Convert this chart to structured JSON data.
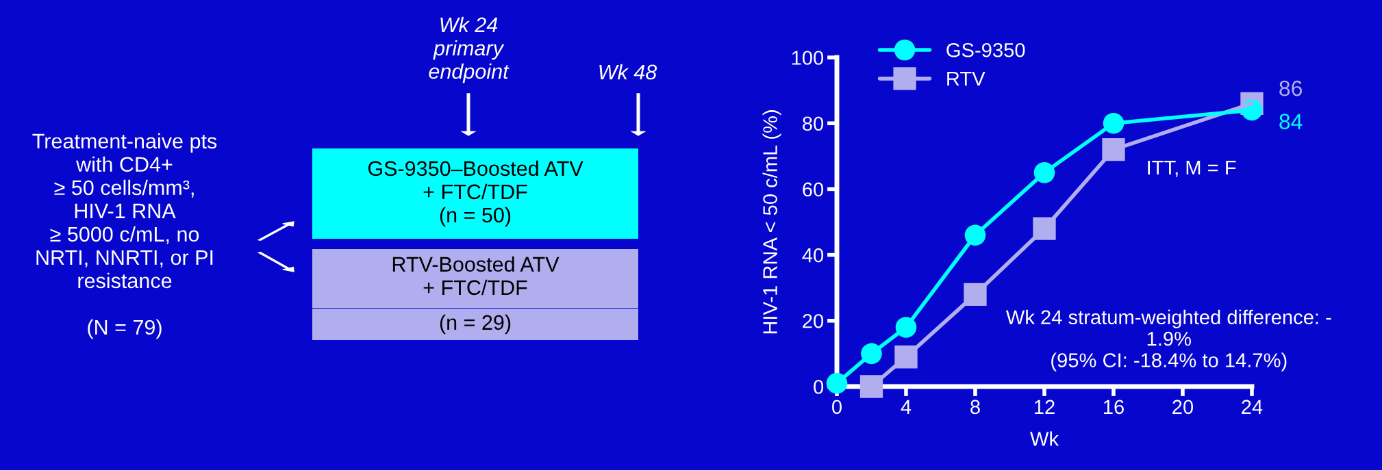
{
  "chart_data": {
    "type": "line",
    "xlabel": "Wk",
    "ylabel": "HIV-1 RNA < 50 c/mL (%)",
    "xlim": [
      0,
      24
    ],
    "xticks": [
      0,
      4,
      8,
      12,
      16,
      20,
      24
    ],
    "ylim": [
      0,
      100
    ],
    "yticks": [
      0,
      20,
      40,
      60,
      80,
      100
    ],
    "grid": false,
    "legend": "top left",
    "line_style": "solid",
    "series": [
      {
        "name": "GS-9350",
        "color": "#00ffff",
        "marker": "circle",
        "x": [
          0,
          2,
          4,
          8,
          12,
          16,
          24
        ],
        "values": [
          1,
          10,
          18,
          46,
          65,
          80,
          84
        ],
        "value_labels": [
          null,
          null,
          null,
          null,
          null,
          null,
          "84"
        ]
      },
      {
        "name": "RTV",
        "color": "#b0aeee",
        "marker": "square",
        "x": [
          2,
          4,
          8,
          12,
          16,
          24
        ],
        "values": [
          0,
          9,
          28,
          48,
          72,
          86
        ],
        "value_labels": [
          null,
          null,
          null,
          null,
          null,
          "86"
        ]
      }
    ],
    "annotations": [
      "Treatment-naive pts\nwith CD4+\n≥ 50 cells/mm³,\nHIV-1 RNA\n≥ 5000 c/mL, no\nNRTI, NNRTI, or PI\nresistance\n\n(N = 79)",
      "GS-9350–Boosted ATV\n+ FTC/TDF\n(n = 50)",
      "RTV-Boosted ATV\n+ FTC/TDF",
      "(n = 29)",
      "Wk 24\nprimary\nendpoint",
      "Wk 48",
      "ITT, M = F",
      "Wk 24 stratum-weighted difference: -\n1.9%\n(95% CI: -18.4% to 14.7%)"
    ]
  }
}
